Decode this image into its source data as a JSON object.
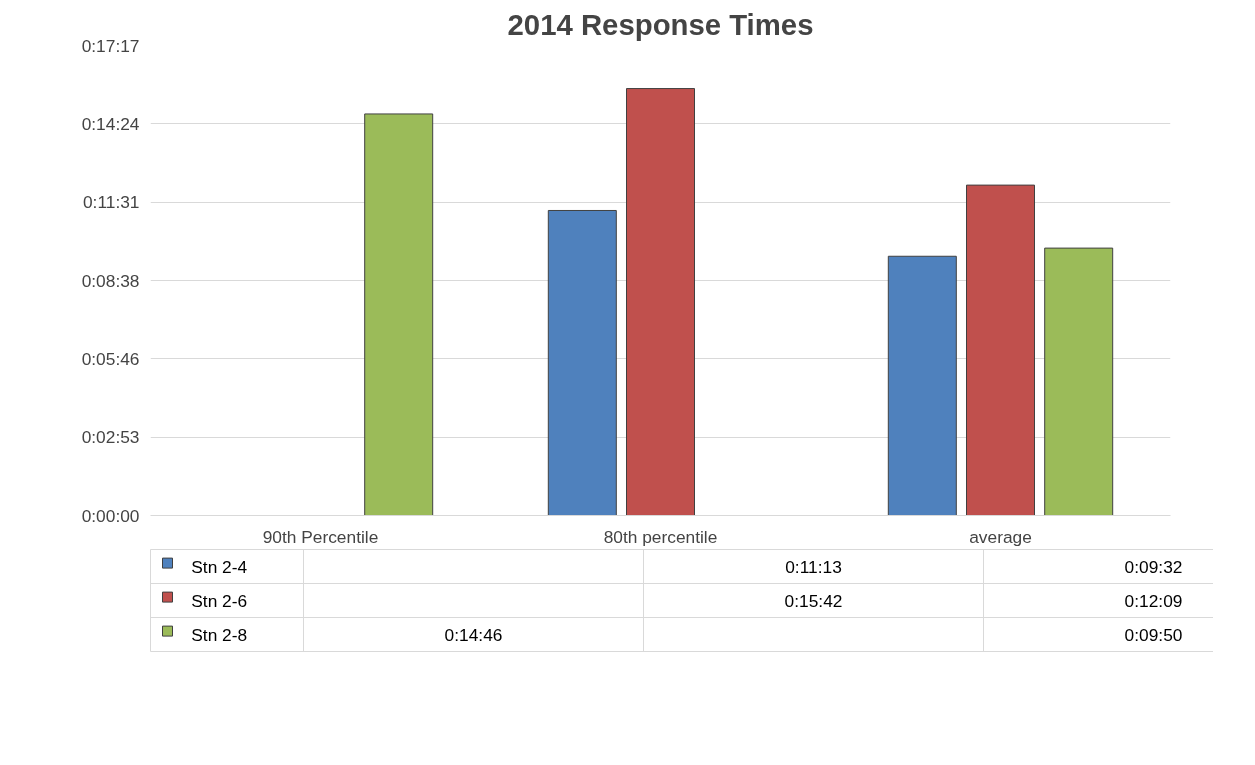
{
  "chart_data": {
    "type": "bar",
    "title": "2014 Response Times",
    "categories": [
      "90th Percentile",
      "80th percentile",
      "average"
    ],
    "series": [
      {
        "name": "Stn 2-4",
        "color": "#4f81bd",
        "values": [
          null,
          673,
          572
        ],
        "value_labels": [
          null,
          "0:11:13",
          "0:09:32"
        ]
      },
      {
        "name": "Stn 2-6",
        "color": "#c0504d",
        "values": [
          null,
          942,
          729
        ],
        "value_labels": [
          null,
          "0:15:42",
          "0:12:09"
        ]
      },
      {
        "name": "Stn 2-8",
        "color": "#9bbb59",
        "values": [
          886,
          null,
          590
        ],
        "value_labels": [
          "0:14:46",
          null,
          "0:09:50"
        ]
      }
    ],
    "ylim": [
      0,
      1037
    ],
    "yticks": [
      {
        "value": 0,
        "label": "0:00:00"
      },
      {
        "value": 173,
        "label": "0:02:53"
      },
      {
        "value": 346,
        "label": "0:05:46"
      },
      {
        "value": 518,
        "label": "0:08:38"
      },
      {
        "value": 691,
        "label": "0:11:31"
      },
      {
        "value": 864,
        "label": "0:14:24"
      },
      {
        "value": 1037,
        "label": "0:17:17"
      }
    ],
    "grid": "y",
    "legend": "bottom"
  }
}
